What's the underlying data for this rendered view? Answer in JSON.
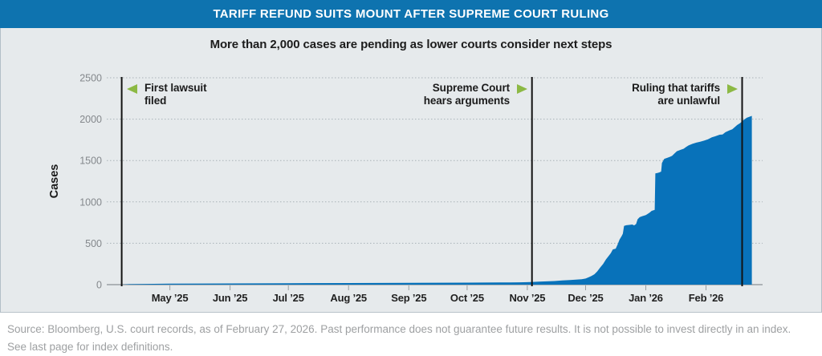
{
  "header": {
    "title": "TARIFF REFUND SUITS MOUNT AFTER SUPREME COURT RULING"
  },
  "subtitle": "More than 2,000 cases are pending as lower courts consider next steps",
  "annotations": [
    {
      "id": "first-lawsuit",
      "arrow": "left",
      "text": "First lawsuit\nfiled"
    },
    {
      "id": "scotus-arguments",
      "arrow": "right",
      "text": "Supreme Court\nhears arguments"
    },
    {
      "id": "ruling",
      "arrow": "right",
      "text": "Ruling that tariffs\nare unlawful"
    }
  ],
  "source": {
    "text": "Source: Bloomberg, U.S. court records, as of February 27, 2026. Past performance does not guarantee future results. It is not possible to invest directly in an index. See last page for index definitions."
  },
  "chart_data": {
    "type": "area",
    "title": "TARIFF REFUND SUITS MOUNT AFTER SUPREME COURT RULING",
    "subtitle": "More than 2,000 cases are pending as lower courts consider next steps",
    "ylabel": "Cases",
    "xlabel": "",
    "ylim": [
      0,
      2500
    ],
    "grid": "horizontal-dotted",
    "legend": "none",
    "x_unit": "days since 2025-04-01",
    "y_ticks": [
      {
        "value": 0,
        "label": "0"
      },
      {
        "value": 500,
        "label": "500"
      },
      {
        "value": 1000,
        "label": "1000"
      },
      {
        "value": 1500,
        "label": "1500"
      },
      {
        "value": 2000,
        "label": "2000"
      },
      {
        "value": 2500,
        "label": "2500"
      }
    ],
    "x_ticks": [
      {
        "t": 30,
        "label": "May ’25"
      },
      {
        "t": 61,
        "label": "Jun ’25"
      },
      {
        "t": 91,
        "label": "Jul ’25"
      },
      {
        "t": 122,
        "label": "Aug ’25"
      },
      {
        "t": 153,
        "label": "Sep ’25"
      },
      {
        "t": 183,
        "label": "Oct ’25"
      },
      {
        "t": 214,
        "label": "Nov ’25"
      },
      {
        "t": 244,
        "label": "Dec ’25"
      },
      {
        "t": 275,
        "label": "Jan ’26"
      },
      {
        "t": 306,
        "label": "Feb ’26"
      }
    ],
    "events": [
      {
        "t": 5.2,
        "label": "First lawsuit filed"
      },
      {
        "t": 216.4,
        "label": "Supreme Court hears arguments"
      },
      {
        "t": 324.6,
        "label": "Ruling that tariffs are unlawful"
      }
    ],
    "series": [
      {
        "name": "Cases",
        "points": [
          [
            5.2,
            0
          ],
          [
            7,
            3
          ],
          [
            9,
            6
          ],
          [
            30,
            12
          ],
          [
            61,
            15
          ],
          [
            91,
            17
          ],
          [
            122,
            19
          ],
          [
            153,
            21
          ],
          [
            183,
            24
          ],
          [
            200,
            26
          ],
          [
            210,
            28
          ],
          [
            214,
            30
          ],
          [
            217,
            33
          ],
          [
            220,
            36
          ],
          [
            224,
            40
          ],
          [
            228,
            44
          ],
          [
            232,
            50
          ],
          [
            236,
            55
          ],
          [
            239,
            60
          ],
          [
            242,
            66
          ],
          [
            244,
            74
          ],
          [
            245.5,
            88
          ],
          [
            247,
            105
          ],
          [
            248.5,
            125
          ],
          [
            250,
            160
          ],
          [
            251.5,
            205
          ],
          [
            253,
            250
          ],
          [
            254.5,
            305
          ],
          [
            256,
            350
          ],
          [
            257,
            380
          ],
          [
            258,
            425
          ],
          [
            259.5,
            435
          ],
          [
            260.5,
            485
          ],
          [
            261.5,
            545
          ],
          [
            262.5,
            585
          ],
          [
            263.2,
            615
          ],
          [
            263.8,
            710
          ],
          [
            265,
            718
          ],
          [
            266.5,
            722
          ],
          [
            268,
            727
          ],
          [
            269,
            716
          ],
          [
            270,
            733
          ],
          [
            270.8,
            790
          ],
          [
            271.8,
            815
          ],
          [
            273,
            826
          ],
          [
            275,
            841
          ],
          [
            276,
            856
          ],
          [
            277,
            871
          ],
          [
            278,
            891
          ],
          [
            279.6,
            903
          ],
          [
            279.9,
            1345
          ],
          [
            281,
            1350
          ],
          [
            282,
            1357
          ],
          [
            282.9,
            1366
          ],
          [
            283.3,
            1470
          ],
          [
            284.5,
            1520
          ],
          [
            286,
            1532
          ],
          [
            287.5,
            1546
          ],
          [
            288.5,
            1556
          ],
          [
            290,
            1590
          ],
          [
            291,
            1612
          ],
          [
            293,
            1630
          ],
          [
            294.5,
            1642
          ],
          [
            295.6,
            1662
          ],
          [
            297,
            1682
          ],
          [
            299,
            1702
          ],
          [
            301,
            1716
          ],
          [
            303,
            1728
          ],
          [
            305,
            1740
          ],
          [
            307,
            1756
          ],
          [
            309,
            1780
          ],
          [
            311,
            1796
          ],
          [
            313,
            1812
          ],
          [
            314.5,
            1815
          ],
          [
            316,
            1842
          ],
          [
            318,
            1864
          ],
          [
            319.5,
            1878
          ],
          [
            321,
            1908
          ],
          [
            322,
            1928
          ],
          [
            323.5,
            1952
          ],
          [
            324.5,
            1972
          ],
          [
            325.5,
            1992
          ],
          [
            327,
            2016
          ],
          [
            329.6,
            2040
          ]
        ]
      }
    ],
    "colors": {
      "area": "#0872ba",
      "event_line": "#121212",
      "grid": "#a9b2b7",
      "axis": "#9aa0a4",
      "header_bg": "#0e73af",
      "accent_green": "#8cb944"
    }
  }
}
